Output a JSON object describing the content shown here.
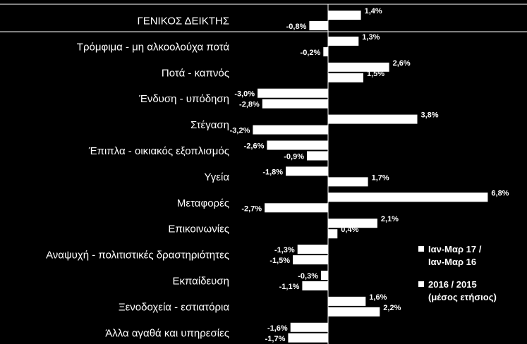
{
  "chart_data": {
    "type": "bar",
    "orientation": "horizontal",
    "categories": [
      "ΓΕΝΙΚΟΣ ΔΕΙΚΤΗΣ",
      "Τρόμφιμα - μη αλκοολούχα ποτά",
      "Ποτά - καπνός",
      "Ένδυση - υπόδηση",
      "Στέγαση",
      "Έπιπλα - οικιακός εξοπλισμός",
      "Υγεία",
      "Μεταφορές",
      "Επικοινωνίες",
      "Αναψυχή - πολιτιστικές δραστηριότητες",
      "Εκπαίδευση",
      "Ξενοδοχεία - εστιατόρια",
      "Άλλα αγαθά και υπηρεσίες"
    ],
    "series": [
      {
        "name": "Ιαν-Μαρ 17 / Ιαν-Μαρ 16",
        "legend_lines": [
          "Ιαν-Μαρ 17 /",
          "Ιαν-Μαρ 16"
        ],
        "values": [
          1.4,
          1.3,
          2.6,
          -3.0,
          3.8,
          -2.6,
          -1.8,
          6.8,
          2.1,
          -1.3,
          -0.3,
          1.6,
          -1.6
        ],
        "labels": [
          "1,4%",
          "1,3%",
          "2,6%",
          "-3,0%",
          "3,8%",
          "-2,6%",
          "-1,8%",
          "6,8%",
          "2,1%",
          "-1,3%",
          "-0,3%",
          "1,6%",
          "-1,6%"
        ]
      },
      {
        "name": "2016 / 2015 (μέσος ετήσιος)",
        "legend_lines": [
          "2016 / 2015",
          "(μέσος ετήσιος)"
        ],
        "values": [
          -0.8,
          -0.2,
          1.5,
          -2.8,
          -3.2,
          -0.9,
          1.7,
          -2.7,
          0.4,
          -1.5,
          -1.1,
          2.2,
          -1.7
        ],
        "labels": [
          "-0,8%",
          "-0,2%",
          "1,5%",
          "-2,8%",
          "-3,2%",
          "-0,9%",
          "1,7%",
          "-2,7%",
          "0,4%",
          "-1,5%",
          "-1,1%",
          "2,2%",
          "-1,7%"
        ]
      }
    ],
    "xlim": [
      -4.0,
      7.0
    ],
    "colors": {
      "background": "#000000",
      "bars": "#ffffff",
      "text": "#ffffff"
    },
    "legend_position": "right",
    "grid": false
  }
}
